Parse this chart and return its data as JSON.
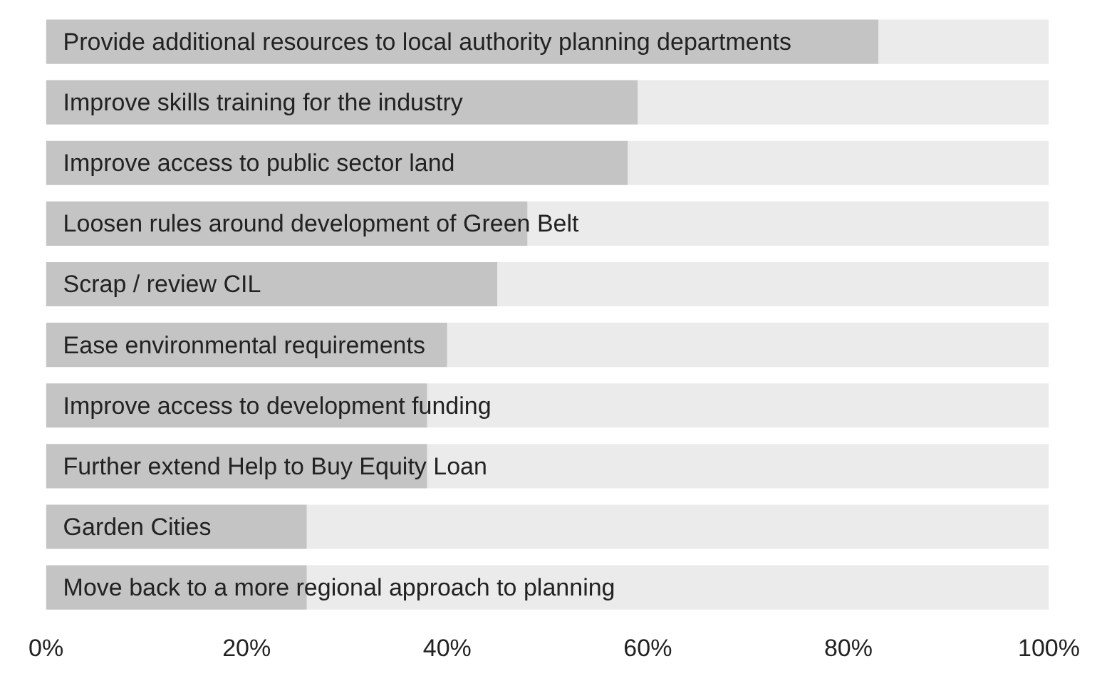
{
  "chart_data": {
    "type": "bar",
    "orientation": "horizontal",
    "categories": [
      "Provide additional resources to local authority planning departments",
      "Improve skills training for the industry",
      "Improve access to public sector land",
      "Loosen rules around development of Green Belt",
      "Scrap / review CIL",
      "Ease environmental requirements",
      "Improve access to development funding",
      "Further extend Help to Buy Equity Loan",
      "Garden Cities",
      "Move back to a more regional approach to planning"
    ],
    "series": [
      {
        "color": "#c4c4c4",
        "values": [
          83,
          59,
          58,
          48,
          45,
          40,
          38,
          38,
          26,
          26
        ]
      },
      {
        "color": "#ebebeb",
        "values": [
          17,
          41,
          42,
          52,
          55,
          60,
          62,
          62,
          74,
          74
        ]
      }
    ],
    "stacked": true,
    "xlim": [
      0,
      100
    ],
    "xticks": [
      {
        "value": 0,
        "label": "0%"
      },
      {
        "value": 20,
        "label": "20%"
      },
      {
        "value": 40,
        "label": "40%"
      },
      {
        "value": 60,
        "label": "60%"
      },
      {
        "value": 80,
        "label": "80%"
      },
      {
        "value": 100,
        "label": "100%"
      }
    ],
    "grid": false,
    "legend": false
  }
}
